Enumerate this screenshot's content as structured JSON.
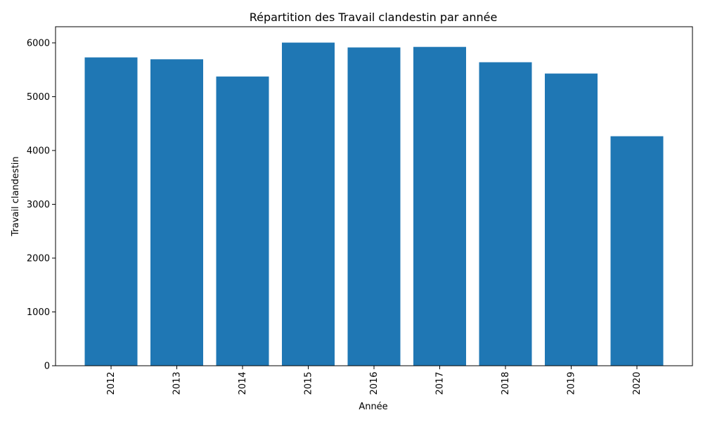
{
  "chart_data": {
    "type": "bar",
    "title": "Répartition des Travail clandestin par année",
    "xlabel": "Année",
    "ylabel": "Travail clandestin",
    "categories": [
      "2012",
      "2013",
      "2014",
      "2015",
      "2016",
      "2017",
      "2018",
      "2019",
      "2020"
    ],
    "values": [
      5730,
      5695,
      5375,
      6005,
      5915,
      5925,
      5640,
      5430,
      4265
    ],
    "ylim": [
      0,
      6300
    ],
    "yticks": [
      0,
      1000,
      2000,
      3000,
      4000,
      5000,
      6000
    ],
    "grid": false,
    "legend": "none",
    "x_tick_rotation": "vertical",
    "bar_color": "#1f77b4"
  }
}
